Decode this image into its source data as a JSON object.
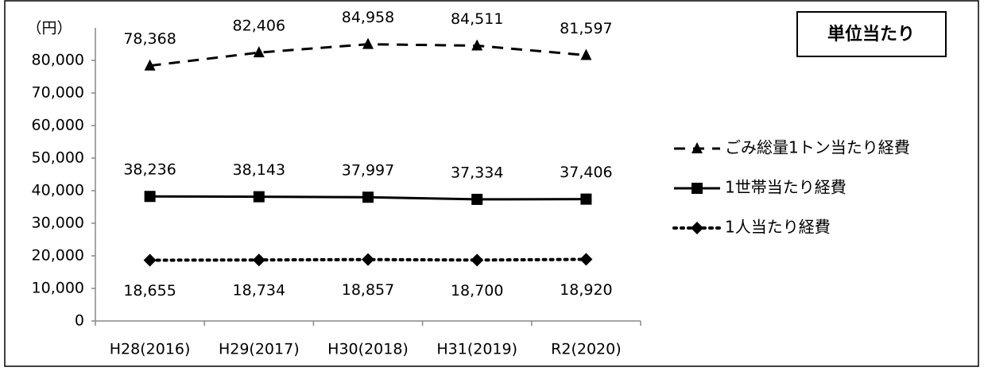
{
  "chart_data": {
    "type": "line",
    "badge": "単位当たり",
    "y_label": "（円）",
    "categories": [
      "H28(2016)",
      "H29(2017)",
      "H30(2018)",
      "H31(2019)",
      "R2(2020)"
    ],
    "series": [
      {
        "name": "ごみ総量1トン当たり経費",
        "color": "#000000",
        "line_style": "dashed",
        "marker": "triangle",
        "values": [
          78368,
          82406,
          84958,
          84511,
          81597
        ],
        "value_labels": [
          "78,368",
          "82,406",
          "84,958",
          "84,511",
          "81,597"
        ],
        "label_position": "above"
      },
      {
        "name": "1世帯当たり経費",
        "color": "#000000",
        "line_style": "solid",
        "marker": "square",
        "values": [
          38236,
          38143,
          37997,
          37334,
          37406
        ],
        "value_labels": [
          "38,236",
          "38,143",
          "37,997",
          "37,334",
          "37,406"
        ],
        "label_position": "above"
      },
      {
        "name": "1人当たり経費",
        "color": "#000000",
        "line_style": "dotted",
        "marker": "diamond",
        "values": [
          18655,
          18734,
          18857,
          18700,
          18920
        ],
        "value_labels": [
          "18,655",
          "18,734",
          "18,857",
          "18,700",
          "18,920"
        ],
        "label_position": "below"
      }
    ],
    "ylim": [
      0,
      90000
    ],
    "yticks": [
      0,
      {
        "value": 10000,
        "label": "10,000"
      },
      {
        "value": 20000,
        "label": "20,000"
      },
      {
        "value": 30000,
        "label": "30,000"
      },
      {
        "value": 40000,
        "label": "40,000"
      },
      {
        "value": 50000,
        "label": "50,000"
      },
      {
        "value": 60000,
        "label": "60,000"
      },
      {
        "value": 70000,
        "label": "70,000"
      },
      {
        "value": 80000,
        "label": "80,000"
      }
    ],
    "grid": false,
    "legend": "right"
  }
}
